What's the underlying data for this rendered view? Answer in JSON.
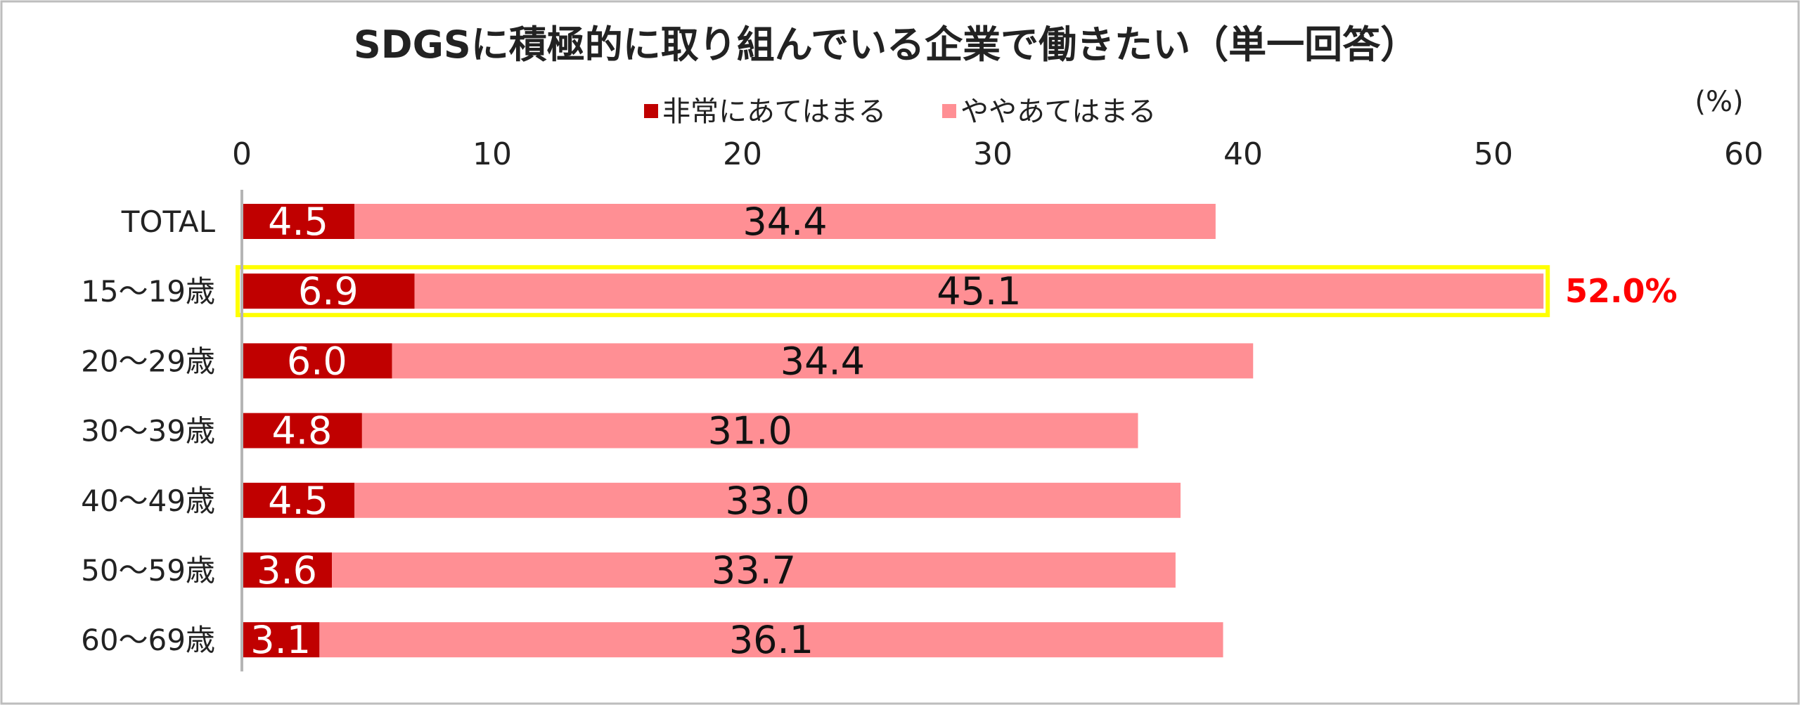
{
  "colors": {
    "strong": "#c00000",
    "some": "#ff8f94",
    "highlight": "#ffff00",
    "callout": "#ff0000"
  },
  "chart_data": {
    "type": "bar",
    "orientation": "horizontal",
    "stacked": true,
    "title": "SDGSに積極的に取り組んでいる企業で働きたい（単一回答）",
    "unit": "(%)",
    "xlim": [
      0,
      60
    ],
    "xticks": [
      0,
      10,
      20,
      30,
      40,
      50,
      60
    ],
    "legend_position": "top",
    "grid": false,
    "categories": [
      "TOTAL",
      "15～19歳",
      "20～29歳",
      "30～39歳",
      "40～49歳",
      "50～59歳",
      "60～69歳"
    ],
    "series": [
      {
        "name": "非常にあてはまる",
        "values": [
          4.5,
          6.9,
          6.0,
          4.8,
          4.5,
          3.6,
          3.1
        ]
      },
      {
        "name": "ややあてはまる",
        "values": [
          34.4,
          45.1,
          34.4,
          31.0,
          33.0,
          33.7,
          36.1
        ]
      }
    ],
    "data_labels": [
      [
        "4.5",
        "6.9",
        "6.0",
        "4.8",
        "4.5",
        "3.6",
        "3.1"
      ],
      [
        "34.4",
        "45.1",
        "34.4",
        "31.0",
        "33.0",
        "33.7",
        "36.1"
      ]
    ],
    "highlight": {
      "category": "15～19歳",
      "total_label": "52.0%"
    }
  }
}
